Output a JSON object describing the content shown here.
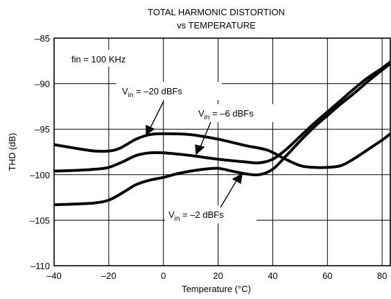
{
  "chart_data": {
    "type": "line",
    "title": [
      "TOTAL HARMONIC DISTORTION",
      "vs TEMPERATURE"
    ],
    "xlabel": "Temperature (°C)",
    "ylabel": "THD (dB)",
    "xlim": [
      -40,
      83
    ],
    "ylim": [
      -110,
      -85
    ],
    "x_ticks": [
      -40,
      -20,
      0,
      20,
      40,
      60,
      80
    ],
    "y_ticks": [
      -85,
      -90,
      -95,
      -100,
      -105,
      -110
    ],
    "x_tick_labels": [
      "–40",
      "–20",
      "0",
      "20",
      "40",
      "60",
      "80"
    ],
    "y_tick_labels": [
      "–85",
      "–90",
      "–95",
      "–100",
      "–105",
      "–110"
    ],
    "grid": true,
    "legend": "none",
    "annotation_fin": "fin = 100 KHz",
    "series": [
      {
        "label_prefix": "V",
        "label_sub": "in",
        "label_value": " = –20 dBFs",
        "x": [
          -40,
          -30,
          -25,
          -20,
          -16,
          -10,
          -5,
          0,
          10,
          20,
          30,
          38,
          44,
          50,
          55,
          60,
          65,
          70,
          75,
          80,
          83
        ],
        "y": [
          -96.7,
          -97.2,
          -97.4,
          -97.4,
          -97.1,
          -96.1,
          -95.6,
          -95.5,
          -95.6,
          -96.1,
          -96.8,
          -97.3,
          -98.2,
          -99.0,
          -99.2,
          -99.2,
          -99.0,
          -98.2,
          -97.2,
          -96.2,
          -95.5
        ]
      },
      {
        "label_prefix": "V",
        "label_sub": "in",
        "label_value": " = –6 dBFs",
        "x": [
          -40,
          -30,
          -25,
          -20,
          -15,
          -10,
          -5,
          0,
          10,
          20,
          30,
          35,
          40,
          45,
          50,
          55,
          60,
          65,
          70,
          75,
          80,
          83
        ],
        "y": [
          -99.6,
          -99.5,
          -99.4,
          -99.2,
          -98.6,
          -97.9,
          -97.6,
          -97.6,
          -97.9,
          -98.3,
          -98.6,
          -98.7,
          -98.3,
          -97.2,
          -95.8,
          -94.4,
          -93.1,
          -91.8,
          -90.5,
          -89.3,
          -88.3,
          -87.6
        ]
      },
      {
        "label_prefix": "V",
        "label_sub": "in",
        "label_value": " = –2 dBFs",
        "x": [
          -40,
          -30,
          -25,
          -20,
          -15,
          -10,
          -5,
          0,
          5,
          10,
          15,
          20,
          25,
          30,
          35,
          40,
          45,
          50,
          55,
          60,
          65,
          70,
          75,
          80,
          83
        ],
        "y": [
          -103.3,
          -103.2,
          -103.1,
          -102.8,
          -102.0,
          -101.1,
          -100.6,
          -100.3,
          -99.9,
          -99.6,
          -99.4,
          -99.3,
          -99.6,
          -99.9,
          -100.0,
          -99.4,
          -97.9,
          -96.3,
          -94.8,
          -93.5,
          -92.2,
          -91.0,
          -89.7,
          -88.5,
          -87.8
        ]
      }
    ]
  }
}
